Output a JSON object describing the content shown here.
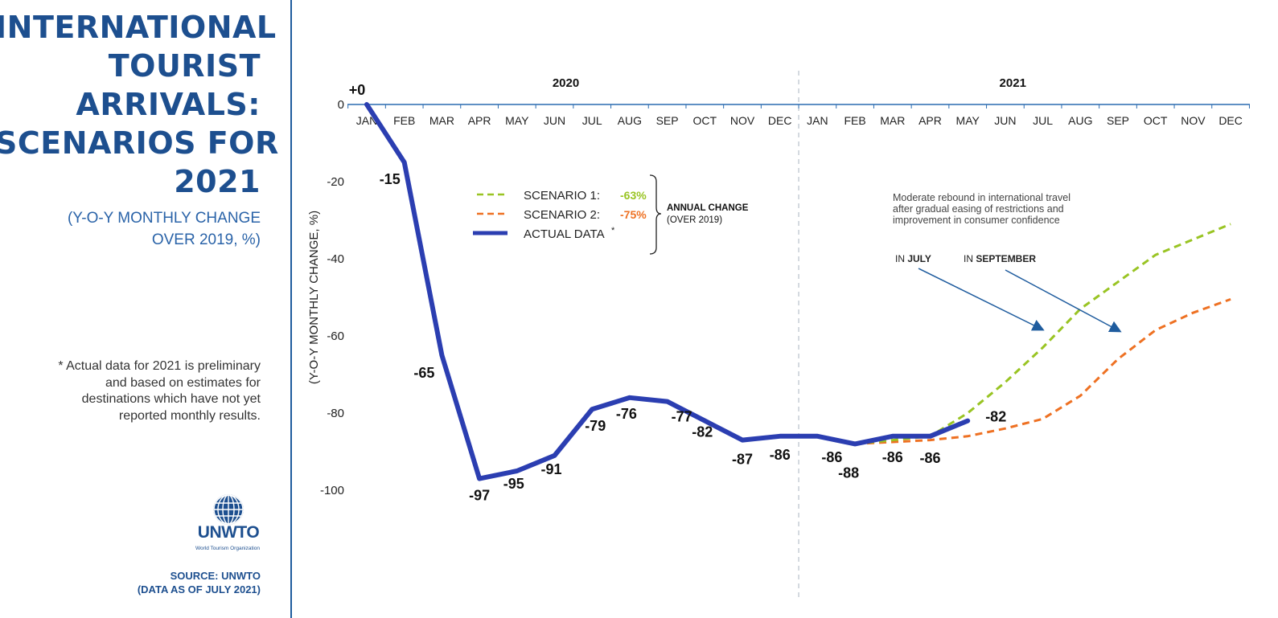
{
  "title_lines": [
    "INTERNATIONAL",
    "TOURIST",
    "ARRIVALS:",
    "SCENARIOS FOR",
    "2021"
  ],
  "subtitle_lines": [
    "(Y-O-Y MONTHLY CHANGE",
    "OVER 2019, %)"
  ],
  "footnote_lines": [
    "* Actual data for 2021 is preliminary",
    "and based on estimates for",
    "destinations which have not yet",
    "reported monthly results."
  ],
  "logo": {
    "name": "UNWTO",
    "subtitle": "World Tourism Organization"
  },
  "source_lines": [
    "SOURCE: UNWTO",
    "(DATA AS OF JULY 2021)"
  ],
  "colors": {
    "actual": "#2b3eb1",
    "scenario1": "#99c423",
    "scenario2": "#ee7123",
    "brand": "#1d4f8f",
    "axis": "#2a6bb0"
  },
  "chart_data": {
    "type": "line",
    "ylabel": "(Y-O-Y MONTHLY CHANGE, %)",
    "ylim": [
      -100,
      0
    ],
    "yticks": [
      0,
      -20,
      -40,
      -60,
      -80,
      -100
    ],
    "year_labels": [
      "2020",
      "2021"
    ],
    "months": [
      "JAN",
      "FEB",
      "MAR",
      "APR",
      "MAY",
      "JUN",
      "JUL",
      "AUG",
      "SEP",
      "OCT",
      "NOV",
      "DEC",
      "JAN",
      "FEB",
      "MAR",
      "APR",
      "MAY",
      "JUN",
      "JUL",
      "AUG",
      "SEP",
      "OCT",
      "NOV",
      "DEC"
    ],
    "actual": {
      "name": "ACTUAL DATA",
      "values": [
        0,
        -15,
        -65,
        -97,
        -95,
        -91,
        -79,
        -76,
        -77,
        -82,
        -87,
        -86,
        -86,
        -88,
        -86,
        -86,
        -82
      ],
      "labels": [
        "+0",
        "-15",
        "-65",
        "-97",
        "-95",
        "-91",
        "-79",
        "-76",
        "-77",
        "-82",
        "-87",
        "-86",
        "-86",
        "-88",
        "-86",
        "-86",
        "-82"
      ]
    },
    "scenario1": {
      "name": "SCENARIO 1:",
      "annual_change": "-63%",
      "start_index": 13,
      "values": [
        -88,
        -87,
        -86,
        -80,
        -72,
        -63,
        -53,
        -46,
        -39,
        -35,
        -31
      ]
    },
    "scenario2": {
      "name": "SCENARIO 2:",
      "annual_change": "-75%",
      "start_index": 13,
      "values": [
        -88,
        -87.5,
        -87,
        -86,
        -84,
        -81.5,
        -75.5,
        -66,
        -58.5,
        -54,
        -50.5
      ]
    },
    "legend": {
      "position": "top-left",
      "bracket_title": "ANNUAL CHANGE",
      "bracket_subtitle": "(OVER 2019)"
    },
    "annotation": {
      "lines": [
        "Moderate rebound in international travel",
        "after gradual easing of restrictions and",
        "improvement in consumer confidence"
      ],
      "arrow1_prefix": "IN ",
      "arrow1_bold": "JULY",
      "arrow2_prefix": "IN ",
      "arrow2_bold": "SEPTEMBER"
    }
  }
}
